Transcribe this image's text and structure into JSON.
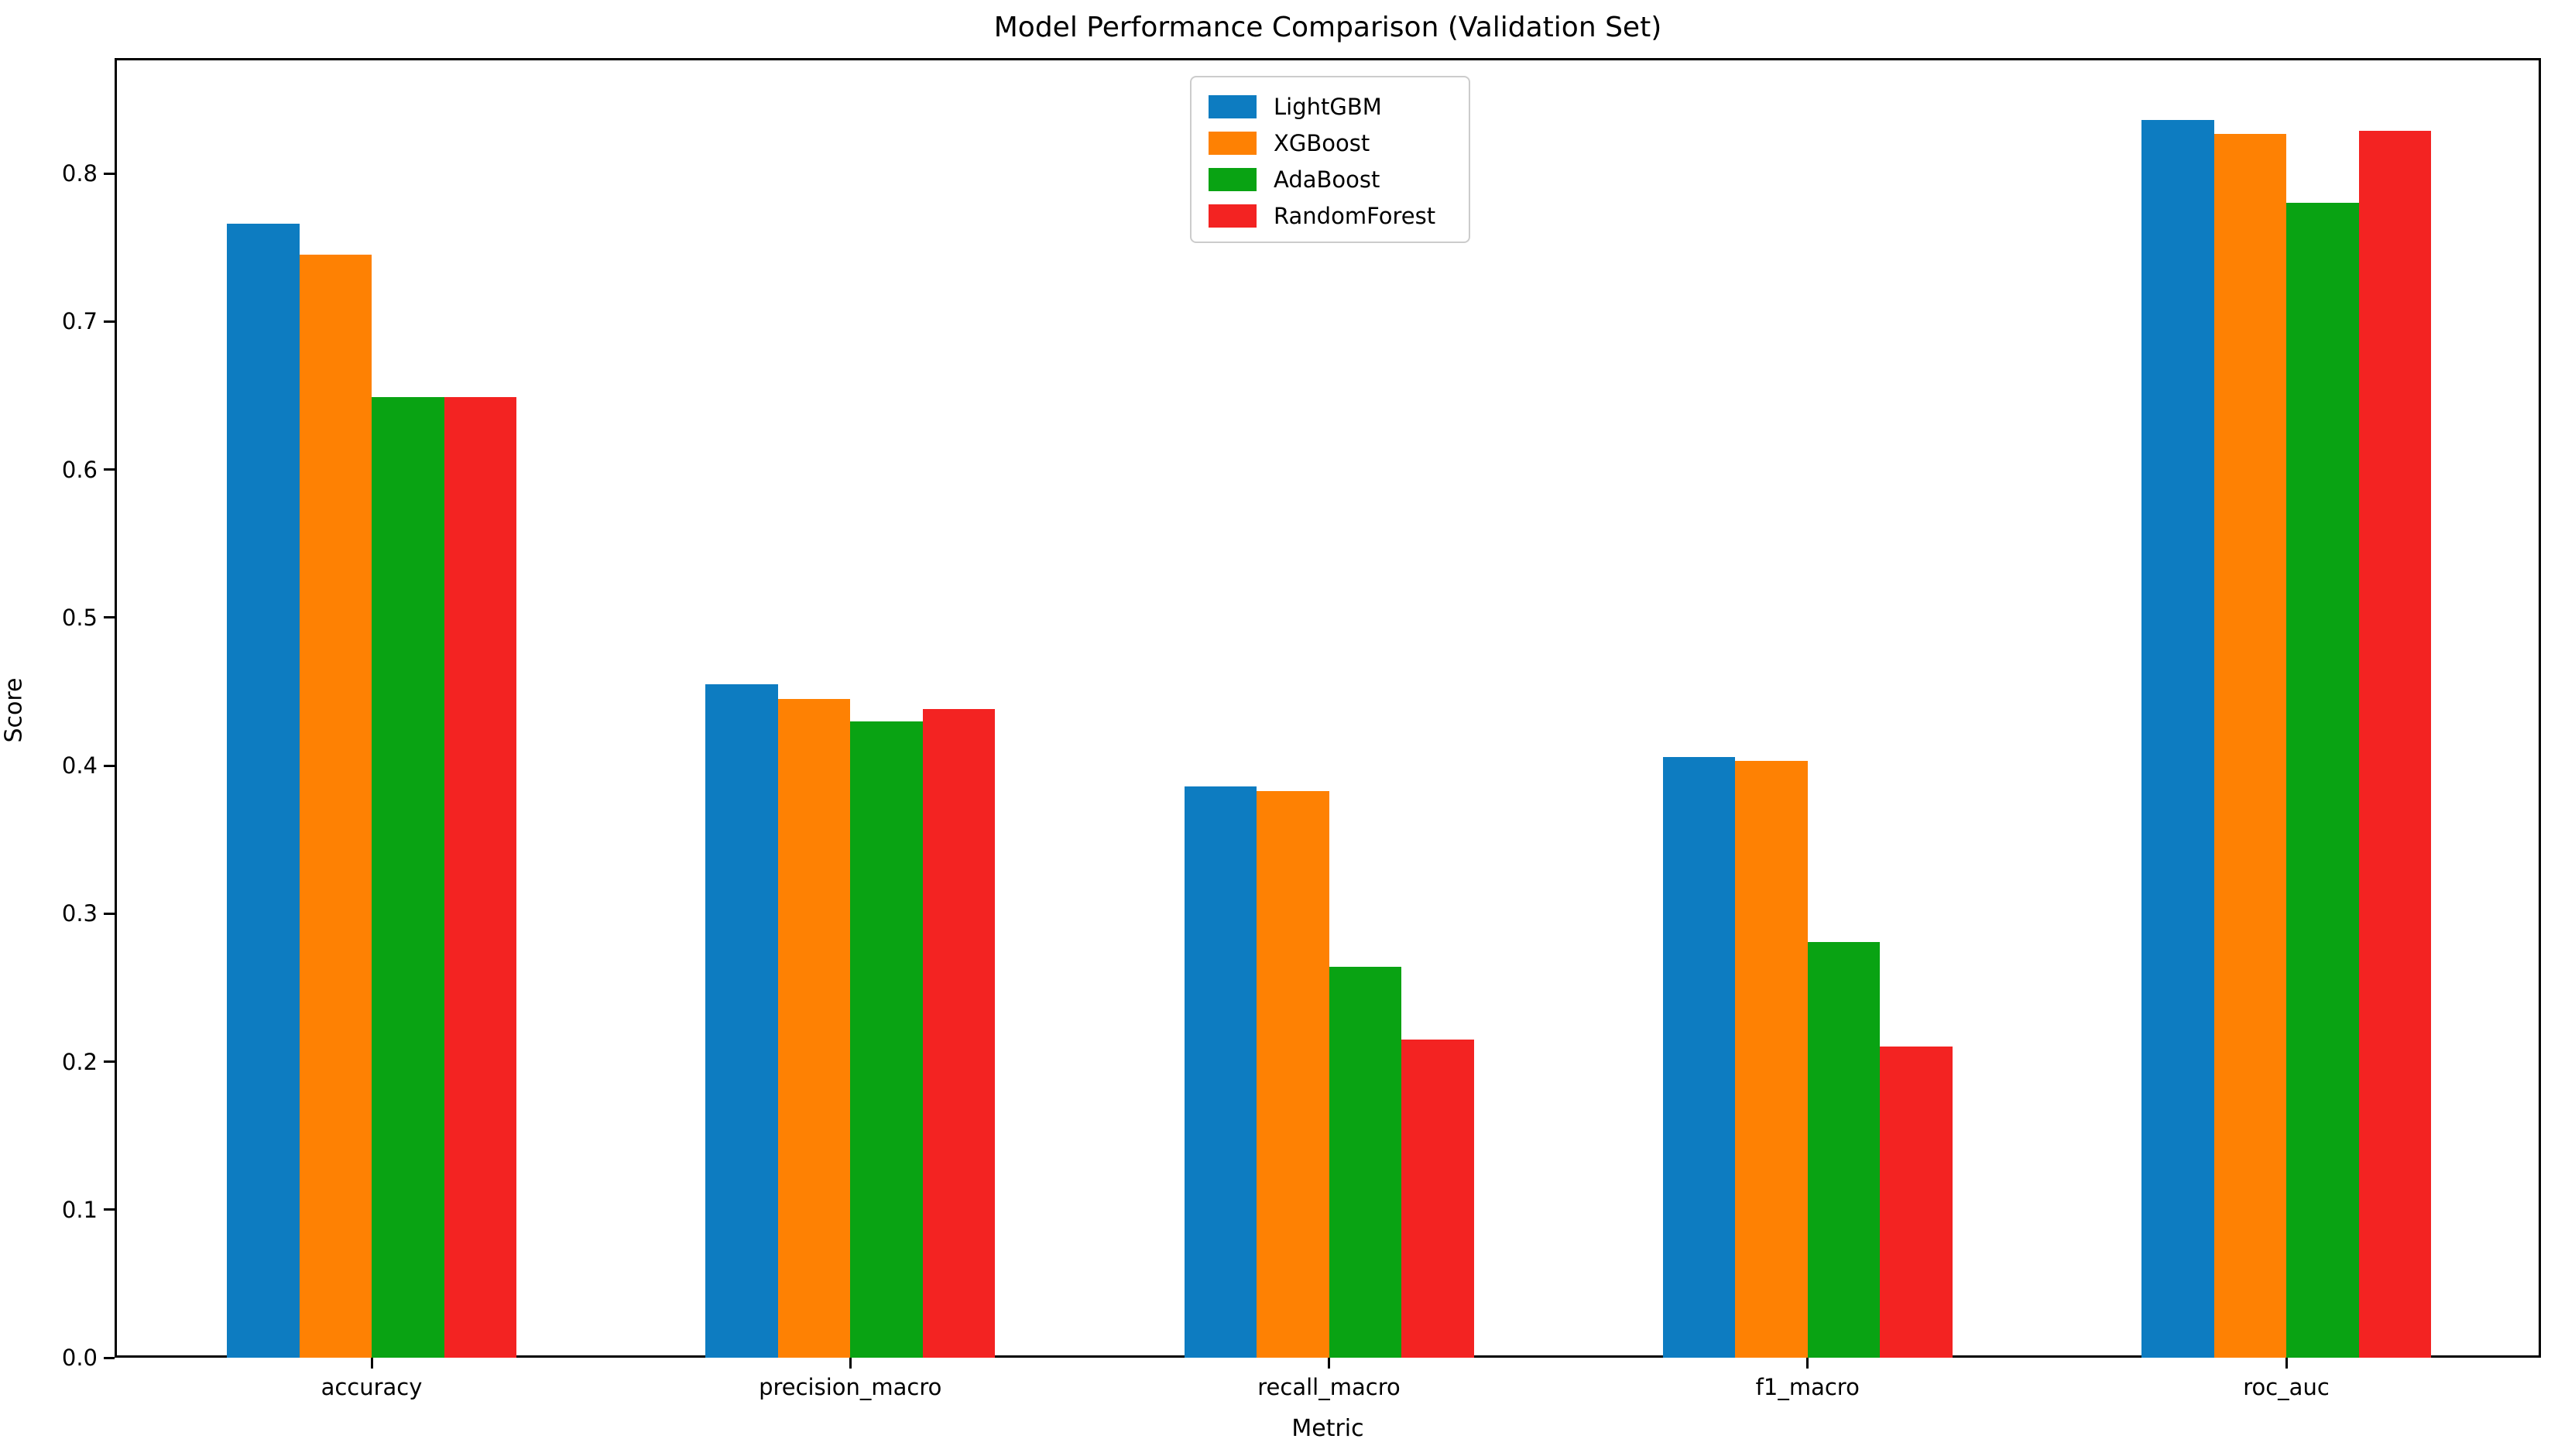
{
  "title": "Model Performance Comparison (Validation Set)",
  "chart_data": {
    "type": "bar",
    "title": "Model Performance Comparison (Validation Set)",
    "xlabel": "Metric",
    "ylabel": "Score",
    "categories": [
      "accuracy",
      "precision_macro",
      "recall_macro",
      "f1_macro",
      "roc_auc"
    ],
    "series": [
      {
        "name": "LightGBM",
        "color": "#0d7cc1",
        "values": [
          0.766,
          0.455,
          0.386,
          0.406,
          0.836
        ]
      },
      {
        "name": "XGBoost",
        "color": "#fe8103",
        "values": [
          0.745,
          0.445,
          0.383,
          0.403,
          0.827
        ]
      },
      {
        "name": "AdaBoost",
        "color": "#09a313",
        "values": [
          0.649,
          0.43,
          0.264,
          0.281,
          0.78
        ]
      },
      {
        "name": "RandomForest",
        "color": "#f32322",
        "values": [
          0.649,
          0.438,
          0.215,
          0.21,
          0.829
        ]
      }
    ],
    "ylim": [
      0,
      0.878
    ],
    "ytick_labels": [
      "0.0",
      "0.1",
      "0.2",
      "0.3",
      "0.4",
      "0.5",
      "0.6",
      "0.7",
      "0.8"
    ],
    "yticks": [
      0.0,
      0.1,
      0.2,
      0.3,
      0.4,
      0.5,
      0.6,
      0.7,
      0.8
    ],
    "grid": false,
    "legend_position": "upper center",
    "axes_background": "#ffffff",
    "spine_color": "#000000",
    "text_color": "#000000"
  }
}
